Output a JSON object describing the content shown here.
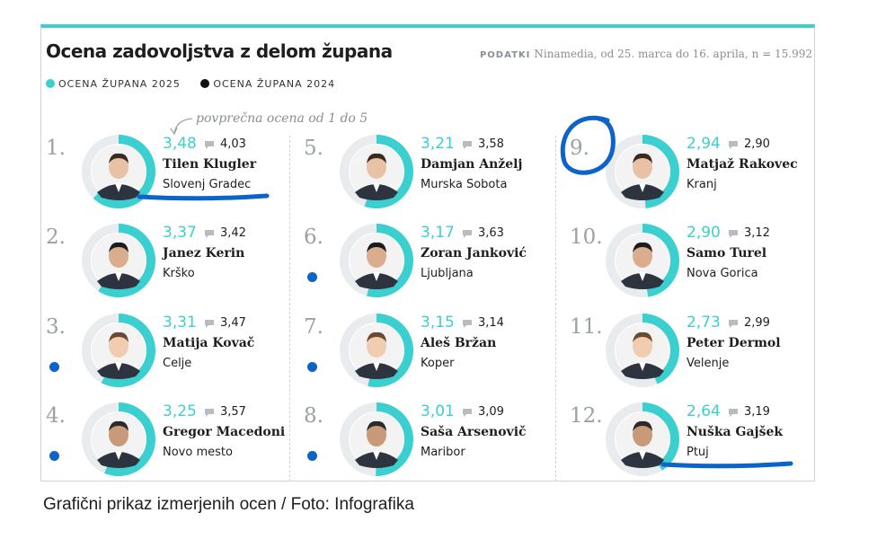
{
  "title": "Ocena zadovoljstva z delom župana",
  "source_label": "PODATKI",
  "source_text": "Ninamedia, od 25. marca do 16. aprila, n = 15.992",
  "note": "povprečna ocena od 1 do 5",
  "caption": "Grafični prikaz izmerjenih ocen / Foto: Infografika",
  "colors": {
    "teal": "#3ccfcf",
    "grey_ring": "#e9ecee",
    "ink": "#1e1e1e",
    "marker_blue": "#0c63c9"
  },
  "chart_data": {
    "type": "donut-grid",
    "title": "Ocena zadovoljstva z delom župana",
    "scale": [
      1,
      5
    ],
    "legend": [
      {
        "label": "OCENA ŽUPANA 2025",
        "color": "#3ccfcf"
      },
      {
        "label": "OCENA ŽUPANA 2024",
        "color": "#111111"
      }
    ],
    "mayors": [
      {
        "rank": "1.",
        "name": "Tilen Klugler",
        "city": "Slovenj Gradec",
        "score_2025": "3,48",
        "score_2024": "4,03",
        "value": 3.48,
        "marker": "underline"
      },
      {
        "rank": "2.",
        "name": "Janez Kerin",
        "city": "Krško",
        "score_2025": "3,37",
        "score_2024": "3,42",
        "value": 3.37,
        "marker": "none"
      },
      {
        "rank": "3.",
        "name": "Matija Kovač",
        "city": "Celje",
        "score_2025": "3,31",
        "score_2024": "3,47",
        "value": 3.31,
        "marker": "dot"
      },
      {
        "rank": "4.",
        "name": "Gregor Macedoni",
        "city": "Novo mesto",
        "score_2025": "3,25",
        "score_2024": "3,57",
        "value": 3.25,
        "marker": "dot"
      },
      {
        "rank": "5.",
        "name": "Damjan Anželj",
        "city": "Murska Sobota",
        "score_2025": "3,21",
        "score_2024": "3,58",
        "value": 3.21,
        "marker": "none"
      },
      {
        "rank": "6.",
        "name": "Zoran Janković",
        "city": "Ljubljana",
        "score_2025": "3,17",
        "score_2024": "3,63",
        "value": 3.17,
        "marker": "dot"
      },
      {
        "rank": "7.",
        "name": "Aleš Bržan",
        "city": "Koper",
        "score_2025": "3,15",
        "score_2024": "3,14",
        "value": 3.15,
        "marker": "dot"
      },
      {
        "rank": "8.",
        "name": "Saša Arsenovič",
        "city": "Maribor",
        "score_2025": "3,01",
        "score_2024": "3,09",
        "value": 3.01,
        "marker": "dot"
      },
      {
        "rank": "9.",
        "name": "Matjaž Rakovec",
        "city": "Kranj",
        "score_2025": "2,94",
        "score_2024": "2,90",
        "value": 2.94,
        "marker": "circle"
      },
      {
        "rank": "10.",
        "name": "Samo Turel",
        "city": "Nova Gorica",
        "score_2025": "2,90",
        "score_2024": "3,12",
        "value": 2.9,
        "marker": "none"
      },
      {
        "rank": "11.",
        "name": "Peter Dermol",
        "city": "Velenje",
        "score_2025": "2,73",
        "score_2024": "2,99",
        "value": 2.73,
        "marker": "none"
      },
      {
        "rank": "12.",
        "name": "Nuška Gajšek",
        "city": "Ptuj",
        "score_2025": "2,64",
        "score_2024": "3,19",
        "value": 2.64,
        "marker": "underline"
      }
    ]
  }
}
